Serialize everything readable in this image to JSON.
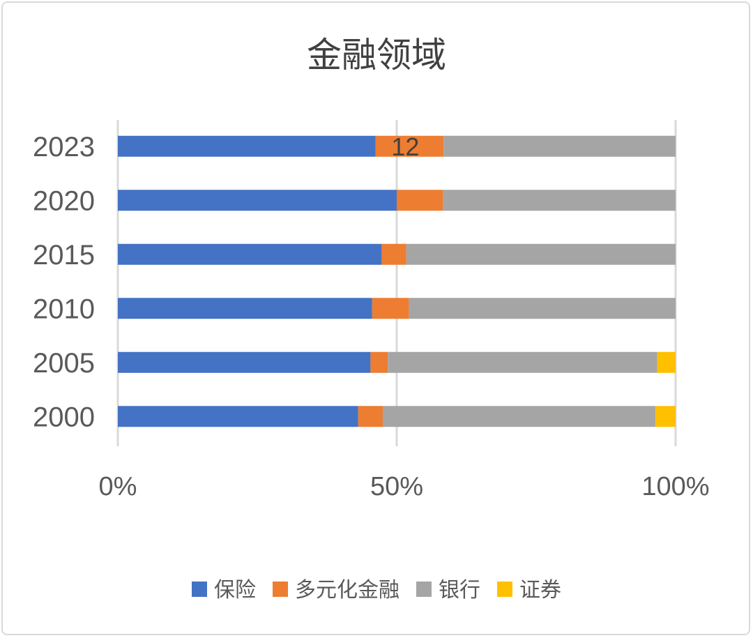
{
  "chart_data": {
    "type": "bar",
    "orientation": "horizontal",
    "stacked": "percent",
    "title": "金融领域",
    "categories": [
      "2023",
      "2020",
      "2015",
      "2010",
      "2005",
      "2000"
    ],
    "series": [
      {
        "name": "保险",
        "color": "#4472c4",
        "values": [
          46.2,
          50.0,
          47.3,
          45.6,
          45.3,
          43.1
        ]
      },
      {
        "name": "多元化金融",
        "color": "#ed7d31",
        "values": [
          12.2,
          8.3,
          4.4,
          6.6,
          3.1,
          4.4
        ]
      },
      {
        "name": "银行",
        "color": "#a5a5a5",
        "values": [
          41.6,
          41.7,
          48.3,
          47.8,
          48.3,
          48.9
        ]
      },
      {
        "name": "证券",
        "color": "#ffc000",
        "values": [
          0,
          0,
          0,
          0,
          3.3,
          3.6
        ]
      }
    ],
    "data_labels": [
      {
        "category": "2023",
        "series": "多元化金融",
        "text": "12"
      }
    ],
    "x_ticks": [
      "0%",
      "50%",
      "100%"
    ],
    "xlim": [
      0,
      100
    ],
    "grid": "vertical",
    "legend": "bottom"
  }
}
